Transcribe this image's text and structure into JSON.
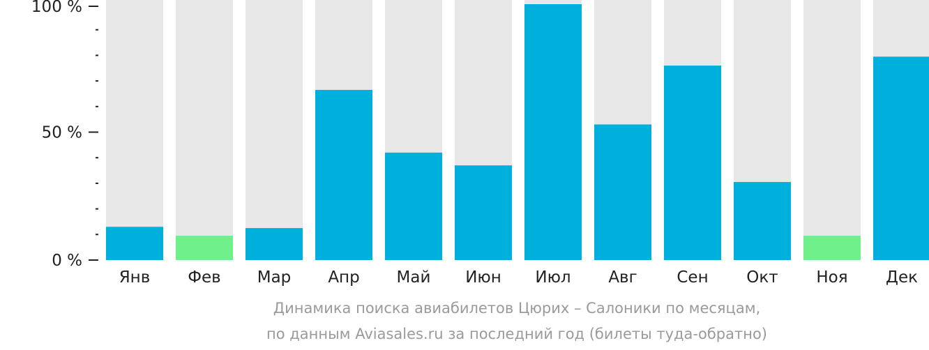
{
  "chart_data": {
    "type": "bar",
    "categories": [
      "Янв",
      "Фев",
      "Мар",
      "Апр",
      "Май",
      "Июн",
      "Июл",
      "Авг",
      "Сен",
      "Окт",
      "Ноя",
      "Дек"
    ],
    "values": [
      13,
      9.5,
      12.5,
      66.5,
      42,
      37,
      100,
      53,
      76,
      30.5,
      9.5,
      79.5
    ],
    "ylim": [
      0,
      100
    ],
    "yticks": [
      {
        "value": 0,
        "label": "0 %"
      },
      {
        "value": 50,
        "label": "50 %"
      },
      {
        "value": 100,
        "label": "100 %"
      }
    ],
    "minor_ticks": [
      10,
      20,
      30,
      40,
      60,
      70,
      80,
      90
    ],
    "highlight_min": true,
    "colors": {
      "bar": "#00b0dc",
      "bar_min": "#6ff08a",
      "track": "#e8e8e8",
      "axis": "#222222"
    }
  },
  "caption": {
    "line1": "Динамика поиска авиабилетов Цюрих – Салоники по месяцам,",
    "line2": "по данным Aviasales.ru за последний год (билеты туда-обратно)"
  }
}
